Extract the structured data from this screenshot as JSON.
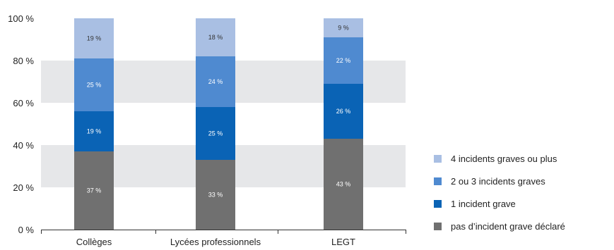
{
  "chart_data": {
    "type": "bar",
    "stacked": true,
    "categories": [
      "Collèges",
      "Lycées professionnels",
      "LEGT"
    ],
    "series": [
      {
        "name": "pas d’incident grave déclaré",
        "values": [
          37,
          33,
          43
        ],
        "labels": [
          "37 %",
          "33 %",
          "43 %"
        ],
        "color": "#707070"
      },
      {
        "name": "1 incident grave",
        "values": [
          19,
          25,
          26
        ],
        "labels": [
          "19 %",
          "25 %",
          "26 %"
        ],
        "color": "#0a63b5"
      },
      {
        "name": "2 ou 3 incidents graves",
        "values": [
          25,
          24,
          22
        ],
        "labels": [
          "25 %",
          "24 %",
          "22 %"
        ],
        "color": "#4f8ad0"
      },
      {
        "name": "4 incidents graves ou plus",
        "values": [
          19,
          18,
          9
        ],
        "labels": [
          "19 %",
          "18 %",
          "9 %"
        ],
        "color": "#a9bfe3"
      }
    ],
    "ylim": [
      0,
      100
    ],
    "yticks": [
      0,
      20,
      40,
      60,
      80,
      100
    ],
    "ytick_labels": [
      "0 %",
      "20 %",
      "40 %",
      "60 %",
      "80 %",
      "100 %"
    ],
    "grid_bands": [
      [
        20,
        40
      ],
      [
        60,
        80
      ]
    ],
    "band_color": "#e6e7e9",
    "legend_position": "right",
    "legend_order": [
      3,
      2,
      1,
      0
    ]
  }
}
